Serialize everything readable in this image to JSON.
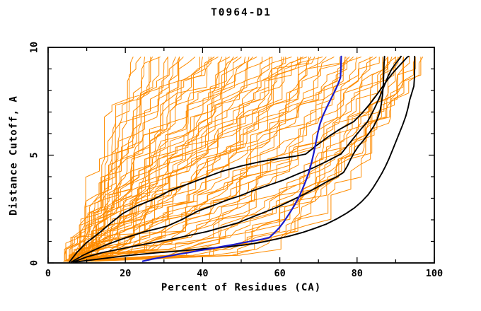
{
  "title": "T0964-D1",
  "axes": {
    "x": {
      "label": "Percent of Residues (CA)",
      "min": 0,
      "max": 100,
      "major_ticks": [
        0,
        20,
        40,
        60,
        80,
        100
      ],
      "tick_labels": [
        "0",
        "20",
        "40",
        "60",
        "80",
        "100"
      ],
      "minor_step": 10
    },
    "y": {
      "label": "Distance Cutoff, A",
      "min": 0,
      "max": 10,
      "major_ticks": [
        0,
        5,
        10
      ],
      "tick_labels": [
        "0",
        "5",
        "10"
      ],
      "minor_step": 1
    }
  },
  "colors": {
    "model_ensemble": "#ff8c00",
    "highlight_models": "#000000",
    "reference_model": "#1a1acc",
    "frame": "#000000",
    "background": "#ffffff"
  },
  "chart_data": {
    "type": "line",
    "title": "T0964-D1",
    "xlabel": "Percent of Residues (CA)",
    "ylabel": "Distance Cutoff, A",
    "xlim": [
      0,
      100
    ],
    "ylim": [
      0,
      10
    ],
    "grid": false,
    "legend": "none",
    "series": [
      {
        "name": "black-curve-1",
        "color_key": "highlight_models",
        "width": 1.9,
        "points": [
          [
            5.5,
            0.04
          ],
          [
            7.5,
            0.5
          ],
          [
            10,
            0.95
          ],
          [
            13.3,
            1.4
          ],
          [
            16.2,
            1.85
          ],
          [
            19.4,
            2.3
          ],
          [
            23,
            2.65
          ],
          [
            27.3,
            2.95
          ],
          [
            31.5,
            3.35
          ],
          [
            36,
            3.65
          ],
          [
            40.5,
            3.95
          ],
          [
            45,
            4.25
          ],
          [
            50,
            4.5
          ],
          [
            55,
            4.7
          ],
          [
            60,
            4.85
          ],
          [
            64,
            4.95
          ],
          [
            66.7,
            5.05
          ],
          [
            69.5,
            5.45
          ],
          [
            72.5,
            5.85
          ],
          [
            75.5,
            6.2
          ],
          [
            79.1,
            6.55
          ],
          [
            81.3,
            6.95
          ],
          [
            83.2,
            7.35
          ],
          [
            84.9,
            7.75
          ],
          [
            86.3,
            8.1
          ],
          [
            87.7,
            8.45
          ],
          [
            89.2,
            8.8
          ],
          [
            90.7,
            9.1
          ],
          [
            92,
            9.35
          ],
          [
            93,
            9.55
          ],
          [
            93.4,
            9.58
          ]
        ]
      },
      {
        "name": "black-curve-2",
        "color_key": "highlight_models",
        "width": 1.9,
        "points": [
          [
            6,
            0.04
          ],
          [
            9,
            0.35
          ],
          [
            12.2,
            0.62
          ],
          [
            15.2,
            0.85
          ],
          [
            18.2,
            1.05
          ],
          [
            21.5,
            1.25
          ],
          [
            25,
            1.45
          ],
          [
            28.5,
            1.6
          ],
          [
            31,
            1.72
          ],
          [
            34.5,
            2.0
          ],
          [
            38.7,
            2.4
          ],
          [
            42.5,
            2.65
          ],
          [
            46,
            2.9
          ],
          [
            49.5,
            3.1
          ],
          [
            53,
            3.35
          ],
          [
            57,
            3.6
          ],
          [
            61,
            3.85
          ],
          [
            65,
            4.15
          ],
          [
            68.5,
            4.4
          ],
          [
            72,
            4.7
          ],
          [
            75.8,
            5.05
          ],
          [
            77.8,
            5.5
          ],
          [
            79.6,
            5.9
          ],
          [
            81.2,
            6.25
          ],
          [
            82.7,
            6.55
          ],
          [
            83.9,
            6.95
          ],
          [
            85,
            7.35
          ],
          [
            86.1,
            7.8
          ],
          [
            87.1,
            8.25
          ],
          [
            88,
            8.65
          ],
          [
            89,
            9.0
          ],
          [
            90.2,
            9.3
          ],
          [
            91.1,
            9.5
          ],
          [
            91.4,
            9.58
          ]
        ]
      },
      {
        "name": "black-curve-3",
        "color_key": "highlight_models",
        "width": 1.9,
        "points": [
          [
            6.5,
            0.04
          ],
          [
            10,
            0.28
          ],
          [
            14,
            0.48
          ],
          [
            18.5,
            0.64
          ],
          [
            23,
            0.8
          ],
          [
            27.5,
            0.95
          ],
          [
            32,
            1.1
          ],
          [
            36.5,
            1.28
          ],
          [
            41,
            1.45
          ],
          [
            45,
            1.65
          ],
          [
            49,
            1.85
          ],
          [
            52.5,
            2.1
          ],
          [
            56,
            2.35
          ],
          [
            59.5,
            2.6
          ],
          [
            63,
            2.9
          ],
          [
            66.5,
            3.2
          ],
          [
            69.5,
            3.5
          ],
          [
            72.5,
            3.8
          ],
          [
            74.8,
            4.0
          ],
          [
            76.5,
            4.2
          ],
          [
            77.5,
            4.5
          ],
          [
            78.3,
            4.8
          ],
          [
            79.2,
            5.1
          ],
          [
            80.3,
            5.4
          ],
          [
            81.7,
            5.7
          ],
          [
            83,
            6.0
          ],
          [
            84.2,
            6.3
          ],
          [
            85.2,
            6.65
          ],
          [
            85.9,
            7.0
          ],
          [
            86.3,
            7.4
          ],
          [
            86.6,
            7.8
          ],
          [
            86.8,
            8.3
          ],
          [
            86.9,
            8.8
          ],
          [
            87,
            9.3
          ],
          [
            87.1,
            9.58
          ]
        ]
      },
      {
        "name": "black-curve-4",
        "color_key": "highlight_models",
        "width": 1.9,
        "points": [
          [
            7,
            0.04
          ],
          [
            14,
            0.2
          ],
          [
            21,
            0.35
          ],
          [
            28,
            0.47
          ],
          [
            35,
            0.57
          ],
          [
            41,
            0.67
          ],
          [
            47,
            0.76
          ],
          [
            51,
            0.84
          ],
          [
            55,
            0.95
          ],
          [
            59,
            1.1
          ],
          [
            62.5,
            1.25
          ],
          [
            66,
            1.42
          ],
          [
            69,
            1.6
          ],
          [
            72,
            1.8
          ],
          [
            74.8,
            2.05
          ],
          [
            77.2,
            2.3
          ],
          [
            79.3,
            2.55
          ],
          [
            81.2,
            2.85
          ],
          [
            82.8,
            3.15
          ],
          [
            84.2,
            3.5
          ],
          [
            85.4,
            3.85
          ],
          [
            86.4,
            4.15
          ],
          [
            87.4,
            4.5
          ],
          [
            88.3,
            4.85
          ],
          [
            89.1,
            5.2
          ],
          [
            90,
            5.6
          ],
          [
            90.9,
            6.0
          ],
          [
            91.8,
            6.4
          ],
          [
            92.6,
            6.8
          ],
          [
            93.2,
            7.2
          ],
          [
            93.6,
            7.55
          ],
          [
            94.2,
            7.9
          ],
          [
            94.7,
            8.2
          ],
          [
            94.85,
            8.6
          ],
          [
            94.9,
            9.1
          ],
          [
            94.9,
            9.58
          ]
        ]
      },
      {
        "name": "blue-curve",
        "color_key": "reference_model",
        "width": 2.2,
        "points": [
          [
            24.5,
            0.08
          ],
          [
            27,
            0.18
          ],
          [
            30,
            0.28
          ],
          [
            33,
            0.38
          ],
          [
            36,
            0.47
          ],
          [
            39,
            0.57
          ],
          [
            42,
            0.66
          ],
          [
            45,
            0.76
          ],
          [
            48,
            0.85
          ],
          [
            50.5,
            0.94
          ],
          [
            53,
            1.02
          ],
          [
            55.5,
            1.1
          ],
          [
            57.3,
            1.18
          ],
          [
            58.5,
            1.38
          ],
          [
            59.8,
            1.62
          ],
          [
            61,
            1.9
          ],
          [
            62.3,
            2.25
          ],
          [
            63.6,
            2.62
          ],
          [
            64.8,
            3.0
          ],
          [
            65.8,
            3.4
          ],
          [
            66.7,
            3.8
          ],
          [
            67.5,
            4.2
          ],
          [
            68.2,
            4.65
          ],
          [
            68.8,
            5.1
          ],
          [
            69.3,
            5.55
          ],
          [
            69.8,
            6.0
          ],
          [
            70.4,
            6.45
          ],
          [
            71.2,
            6.85
          ],
          [
            72.1,
            7.2
          ],
          [
            73.2,
            7.6
          ],
          [
            74.2,
            7.95
          ],
          [
            75.1,
            8.3
          ],
          [
            75.7,
            8.6
          ],
          [
            75.8,
            9.0
          ],
          [
            75.9,
            9.58
          ]
        ]
      }
    ],
    "ensemble": {
      "name": "model-ensemble-curves",
      "color_key": "model_ensemble",
      "width": 1.0,
      "y_start": 0.08,
      "y_end": 9.55,
      "jitter_seed": 12,
      "jitter_amp": 4.2,
      "curves": [
        [
          5,
          22,
          1.0
        ],
        [
          6,
          24,
          1.15
        ],
        [
          5,
          26,
          0.95
        ],
        [
          7,
          28,
          1.2
        ],
        [
          6,
          30,
          1.05
        ],
        [
          5,
          31,
          1.25
        ],
        [
          6,
          33,
          0.9
        ],
        [
          7,
          34,
          1.1
        ],
        [
          5,
          35,
          1.3
        ],
        [
          6,
          37,
          1.0
        ],
        [
          7,
          38,
          1.2
        ],
        [
          5,
          39,
          0.92
        ],
        [
          6,
          40,
          1.12
        ],
        [
          5,
          25,
          1.35
        ],
        [
          6,
          29,
          1.28
        ],
        [
          5,
          34,
          1.4
        ],
        [
          6,
          27,
          1.32
        ],
        [
          7,
          41,
          1.15
        ],
        [
          5,
          43,
          0.95
        ],
        [
          6,
          44,
          1.2
        ],
        [
          8,
          45,
          0.85
        ],
        [
          5,
          46,
          1.1
        ],
        [
          7,
          47,
          0.8
        ],
        [
          6,
          48,
          1.05
        ],
        [
          5,
          49,
          1.18
        ],
        [
          8,
          50,
          0.78
        ],
        [
          6,
          51,
          1.0
        ],
        [
          7,
          52,
          1.15
        ],
        [
          5,
          53,
          0.75
        ],
        [
          6,
          54,
          0.95
        ],
        [
          8,
          55,
          1.1
        ],
        [
          5,
          56,
          0.72
        ],
        [
          7,
          57,
          0.9
        ],
        [
          6,
          58,
          1.05
        ],
        [
          5,
          59,
          0.7
        ],
        [
          8,
          60,
          0.88
        ],
        [
          6,
          61,
          1.0
        ],
        [
          7,
          62,
          0.68
        ],
        [
          5,
          63,
          0.85
        ],
        [
          6,
          64,
          0.95
        ],
        [
          8,
          65,
          0.66
        ],
        [
          5,
          66,
          0.82
        ],
        [
          7,
          67,
          0.75
        ],
        [
          6,
          68,
          0.64
        ],
        [
          5,
          69,
          0.88
        ],
        [
          7,
          70,
          0.72
        ],
        [
          6,
          71,
          0.75
        ],
        [
          8,
          72,
          0.6
        ],
        [
          5,
          73,
          0.8
        ],
        [
          7,
          74,
          0.55
        ],
        [
          6,
          75,
          0.7
        ],
        [
          5,
          76,
          0.6
        ],
        [
          8,
          77,
          0.75
        ],
        [
          6,
          78,
          0.5
        ],
        [
          7,
          79,
          0.65
        ],
        [
          5,
          80,
          0.5
        ],
        [
          6,
          81,
          0.6
        ],
        [
          8,
          82,
          0.42
        ],
        [
          5,
          83,
          0.55
        ],
        [
          7,
          84,
          0.45
        ],
        [
          6,
          85,
          0.6
        ],
        [
          5,
          86,
          0.35
        ],
        [
          8,
          87,
          0.5
        ],
        [
          6,
          88,
          0.4
        ],
        [
          7,
          89,
          0.55
        ],
        [
          5,
          90,
          0.35
        ],
        [
          6,
          91,
          0.45
        ],
        [
          8,
          92,
          0.3
        ],
        [
          5,
          93,
          0.4
        ],
        [
          7,
          95,
          0.32
        ],
        [
          6,
          97,
          0.38
        ],
        [
          9,
          88,
          0.28
        ],
        [
          10,
          92,
          0.22
        ],
        [
          8,
          95,
          0.3
        ],
        [
          9,
          90,
          0.25
        ],
        [
          10,
          85,
          0.28
        ],
        [
          12,
          90,
          0.2
        ],
        [
          11,
          87,
          0.24
        ]
      ]
    }
  }
}
